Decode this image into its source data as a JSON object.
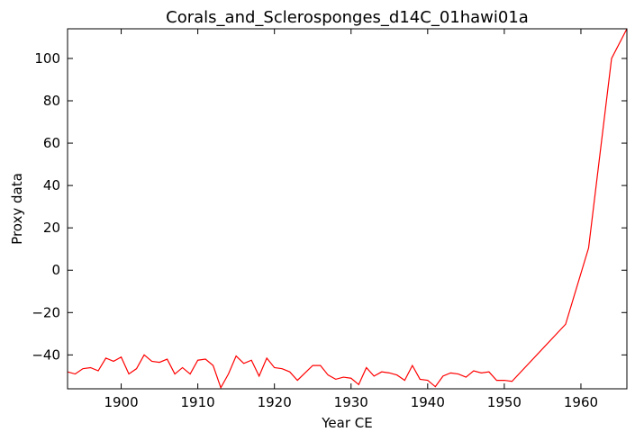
{
  "chart_data": {
    "type": "line",
    "title": "Corals_and_Sclerosponges_d14C_01hawi01a",
    "xlabel": "Year CE",
    "ylabel": "Proxy data",
    "xlim": [
      1893,
      1966
    ],
    "ylim": [
      -56,
      114
    ],
    "xticks": [
      1900,
      1910,
      1920,
      1930,
      1940,
      1950,
      1960
    ],
    "yticks": [
      -40,
      -20,
      0,
      20,
      40,
      60,
      80,
      100
    ],
    "grid": false,
    "series_color": "#ff0000",
    "series": [
      {
        "x": [
          1893,
          1894,
          1895,
          1896,
          1897,
          1898,
          1899,
          1900,
          1901,
          1902,
          1903,
          1904,
          1905,
          1906,
          1907,
          1908,
          1909,
          1910,
          1911,
          1912,
          1913,
          1914,
          1915,
          1916,
          1917,
          1918,
          1919,
          1920,
          1921,
          1922,
          1923,
          1924,
          1925,
          1926,
          1927,
          1928,
          1929,
          1930,
          1931,
          1932,
          1933,
          1934,
          1935,
          1936,
          1937,
          1938,
          1939,
          1940,
          1941,
          1942,
          1943,
          1944,
          1945,
          1946,
          1947,
          1948,
          1949,
          1950,
          1951,
          1958,
          1961,
          1964,
          1966
        ],
        "y": [
          -48,
          -49,
          -46.5,
          -46,
          -47.5,
          -41.5,
          -43,
          -41,
          -49,
          -46.5,
          -40,
          -43,
          -43.5,
          -42,
          -49,
          -46,
          -49,
          -42.5,
          -42,
          -45,
          -55.5,
          -49,
          -40.5,
          -44,
          -42.5,
          -50,
          -41.5,
          -46,
          -46.5,
          -48,
          -52,
          -48.5,
          -45,
          -45,
          -49.5,
          -51.5,
          -50.5,
          -51,
          -54,
          -46,
          -50,
          -48,
          -48.5,
          -49.5,
          -52,
          -45,
          -51.5,
          -52,
          -55,
          -50,
          -48.5,
          -49,
          -50.5,
          -47.5,
          -48.5,
          -48,
          -52,
          -52,
          -52.5,
          -25.5,
          10.5,
          100,
          114
        ]
      }
    ]
  }
}
